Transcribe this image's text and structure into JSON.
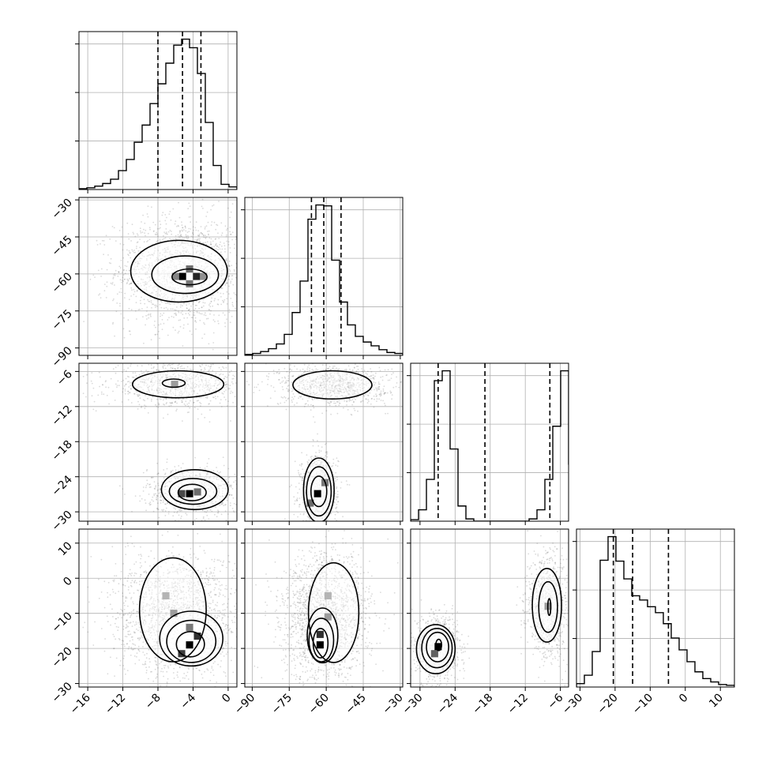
{
  "chart_data": {
    "type": "corner",
    "title": "",
    "n_parameters": 4,
    "parameter_labels": [
      "",
      "",
      "",
      ""
    ],
    "colors": {
      "hist_line": "#000000",
      "contour_line": "#000000",
      "grid": "#b0b0b0",
      "density_dark": "#000000",
      "density_light": "#f0f0f0",
      "samples": "#555555"
    },
    "grid": true,
    "axes": [
      {
        "range": [
          -17,
          1
        ],
        "ticks": [
          -16,
          -12,
          -8,
          -4,
          0
        ],
        "tick_labels": [
          "−16",
          "−12",
          "−8",
          "−4",
          "0"
        ]
      },
      {
        "range": [
          -93,
          -29
        ],
        "ticks": [
          -90,
          -75,
          -60,
          -45,
          -30
        ],
        "tick_labels": [
          "−90",
          "−75",
          "−60",
          "−45",
          "−30"
        ]
      },
      {
        "range": [
          -31.6,
          -4.6
        ],
        "ticks": [
          -30,
          -24,
          -18,
          -12,
          -6
        ],
        "tick_labels": [
          "−30",
          "−24",
          "−18",
          "−12",
          "−6"
        ]
      },
      {
        "range": [
          -31,
          14
        ],
        "ticks": [
          -30,
          -20,
          -10,
          0,
          10
        ],
        "tick_labels": [
          "−30",
          "−20",
          "−10",
          "0",
          "10"
        ]
      }
    ],
    "histograms": [
      {
        "param": 0,
        "bin_start": -17,
        "bin_width": 0.9,
        "counts": [
          1,
          2,
          4,
          7,
          12,
          22,
          35,
          55,
          75,
          100,
          123,
          147,
          168,
          175,
          165,
          135,
          78,
          28,
          6,
          3
        ],
        "quantiles": [
          -8,
          -5.2,
          -3.1
        ]
      },
      {
        "param": 1,
        "bin_start": -93,
        "bin_width": 3.2,
        "counts": [
          1,
          2,
          4,
          7,
          12,
          22,
          45,
          78,
          143,
          158,
          157,
          100,
          56,
          32,
          20,
          14,
          10,
          6,
          3,
          2
        ],
        "quantiles": [
          -66,
          -61,
          -54
        ]
      },
      {
        "param": 2,
        "bin_start": -31.6,
        "bin_width": 1.35,
        "counts": [
          2,
          15,
          55,
          185,
          198,
          95,
          20,
          3,
          0,
          0,
          0,
          0,
          0,
          0,
          0,
          3,
          15,
          55,
          125,
          198,
          75,
          10
        ],
        "quantiles": [
          -26.9,
          -18.9,
          -7.8
        ]
      },
      {
        "param": 3,
        "bin_start": -31,
        "bin_width": 2.25,
        "counts": [
          4,
          14,
          42,
          150,
          178,
          149,
          128,
          108,
          103,
          95,
          88,
          75,
          58,
          44,
          30,
          18,
          10,
          6,
          3,
          2
        ],
        "quantiles": [
          -20.5,
          -15,
          -4.8
        ]
      }
    ],
    "joint_panels": [
      {
        "x_param": 0,
        "y_param": 1,
        "density_cells": [
          {
            "x": -5.2,
            "y": -61,
            "level": 1.0
          },
          {
            "x": -3.6,
            "y": -61,
            "level": 0.85
          },
          {
            "x": -4.4,
            "y": -58,
            "level": 0.55
          },
          {
            "x": -4.4,
            "y": -64,
            "level": 0.5
          },
          {
            "x": -6.0,
            "y": -61,
            "level": 0.45
          },
          {
            "x": -2.8,
            "y": -61,
            "level": 0.4
          }
        ],
        "contours": [
          {
            "cx": -4.4,
            "cy": -61.2,
            "rx": 2.0,
            "ry": 3.2
          },
          {
            "cx": -4.9,
            "cy": -60.3,
            "rx": 3.8,
            "ry": 7.6
          },
          {
            "cx": -5.6,
            "cy": -58.9,
            "rx": 5.5,
            "ry": 12.5
          }
        ],
        "cloud": {
          "cx": -5.2,
          "cy": -59,
          "sx": 3.8,
          "sy": 11,
          "n": 1700
        }
      },
      {
        "x_param": 0,
        "y_param": 2,
        "density_cells": [
          {
            "x": -4.4,
            "y": -26.9,
            "level": 1.0
          },
          {
            "x": -5.3,
            "y": -26.9,
            "level": 0.7
          },
          {
            "x": -3.5,
            "y": -26.6,
            "level": 0.55
          },
          {
            "x": -6.1,
            "y": -8.2,
            "level": 0.35
          }
        ],
        "contours": [
          {
            "cx": -4.1,
            "cy": -26.7,
            "rx": 1.6,
            "ry": 1.4
          },
          {
            "cx": -4.0,
            "cy": -26.5,
            "rx": 2.7,
            "ry": 2.2
          },
          {
            "cx": -3.8,
            "cy": -26.2,
            "rx": 3.8,
            "ry": 3.4
          },
          {
            "cx": -6.2,
            "cy": -8.0,
            "rx": 1.3,
            "ry": 0.7
          },
          {
            "cx": -5.7,
            "cy": -8.2,
            "rx": 5.2,
            "ry": 2.3
          }
        ],
        "cloud": {
          "cx": -4.0,
          "cy": -26.5,
          "sx": 2.6,
          "sy": 2.0,
          "n": 900,
          "cx2": -6.0,
          "cy2": -8.3,
          "sx2": 3.8,
          "sy2": 1.8,
          "n2": 900
        }
      },
      {
        "x_param": 1,
        "y_param": 2,
        "density_cells": [
          {
            "x": -63.5,
            "y": -26.9,
            "level": 1.0
          },
          {
            "x": -66.5,
            "y": -28.5,
            "level": 0.55
          },
          {
            "x": -60.5,
            "y": -25.0,
            "level": 0.5
          }
        ],
        "contours": [
          {
            "cx": -63.0,
            "cy": -26.5,
            "rx": 3.2,
            "ry": 2.6
          },
          {
            "cx": -63.0,
            "cy": -26.5,
            "rx": 5.0,
            "ry": 4.2
          },
          {
            "cx": -63.0,
            "cy": -26.3,
            "rx": 6.2,
            "ry": 5.5
          },
          {
            "cx": -57.5,
            "cy": -8.3,
            "rx": 16.0,
            "ry": 2.4
          }
        ],
        "cloud": {
          "cx": -63,
          "cy": -26.5,
          "sx": 3.8,
          "sy": 3.2,
          "n": 900,
          "cx2": -57,
          "cy2": -8.3,
          "sx2": 11,
          "sy2": 1.8,
          "n2": 1000
        }
      },
      {
        "x_param": 0,
        "y_param": 3,
        "density_cells": [
          {
            "x": -4.4,
            "y": -19,
            "level": 1.0
          },
          {
            "x": -3.5,
            "y": -16.5,
            "level": 0.8
          },
          {
            "x": -5.3,
            "y": -21.5,
            "level": 0.75
          },
          {
            "x": -4.4,
            "y": -14,
            "level": 0.5
          },
          {
            "x": -6.2,
            "y": -10,
            "level": 0.35
          },
          {
            "x": -7.1,
            "y": -5,
            "level": 0.25
          }
        ],
        "contours": [
          {
            "cx": -4.3,
            "cy": -18.8,
            "rx": 1.6,
            "ry": 3.6
          },
          {
            "cx": -4.2,
            "cy": -18.0,
            "rx": 2.8,
            "ry": 6.0
          },
          {
            "cx": -4.2,
            "cy": -17.2,
            "rx": 3.6,
            "ry": 7.8
          },
          {
            "cx": -6.3,
            "cy": -9.0,
            "rx": 3.8,
            "ry": 14.8
          }
        ],
        "cloud": {
          "cx": -5.8,
          "cy": -11,
          "sx": 3.6,
          "sy": 9,
          "n": 1800
        }
      },
      {
        "x_param": 1,
        "y_param": 3,
        "density_cells": [
          {
            "x": -62.5,
            "y": -19,
            "level": 1.0
          },
          {
            "x": -62.5,
            "y": -16,
            "level": 0.8
          },
          {
            "x": -59.3,
            "y": -11,
            "level": 0.35
          },
          {
            "x": -59.3,
            "y": -5,
            "level": 0.25
          }
        ],
        "contours": [
          {
            "cx": -62.3,
            "cy": -18.5,
            "rx": 3.0,
            "ry": 4.2
          },
          {
            "cx": -62.0,
            "cy": -17.6,
            "rx": 5.0,
            "ry": 6.2
          },
          {
            "cx": -61.5,
            "cy": -16.3,
            "rx": 6.2,
            "ry": 7.8
          },
          {
            "cx": -57.0,
            "cy": -9.8,
            "rx": 10.2,
            "ry": 14.2
          }
        ],
        "cloud": {
          "cx": -60,
          "cy": -11,
          "sx": 9,
          "sy": 9,
          "n": 1800
        }
      },
      {
        "x_param": 2,
        "y_param": 3,
        "density_cells": [
          {
            "x": -26.9,
            "y": -19.5,
            "level": 1.0
          },
          {
            "x": -27.5,
            "y": -21.5,
            "level": 0.6
          },
          {
            "x": -8.1,
            "y": -8,
            "level": 0.35
          }
        ],
        "contours": [
          {
            "cx": -26.8,
            "cy": -19.0,
            "rx": 0.5,
            "ry": 1.6
          },
          {
            "cx": -27.0,
            "cy": -19.6,
            "rx": 1.9,
            "ry": 4.2
          },
          {
            "cx": -27.1,
            "cy": -19.9,
            "rx": 2.6,
            "ry": 5.6
          },
          {
            "cx": -27.3,
            "cy": -20.2,
            "rx": 3.3,
            "ry": 7.0
          },
          {
            "cx": -7.9,
            "cy": -8.2,
            "rx": 0.25,
            "ry": 2.4
          },
          {
            "cx": -8.1,
            "cy": -8.2,
            "rx": 1.6,
            "ry": 7.2
          },
          {
            "cx": -8.3,
            "cy": -7.7,
            "rx": 2.5,
            "ry": 10.5
          }
        ],
        "cloud": {
          "cx": -27,
          "cy": -19.7,
          "sx": 1.8,
          "sy": 4.6,
          "n": 900,
          "cx2": -8.1,
          "cy2": -8,
          "sx2": 1.8,
          "sy2": 7.5,
          "n2": 900
        }
      }
    ]
  }
}
